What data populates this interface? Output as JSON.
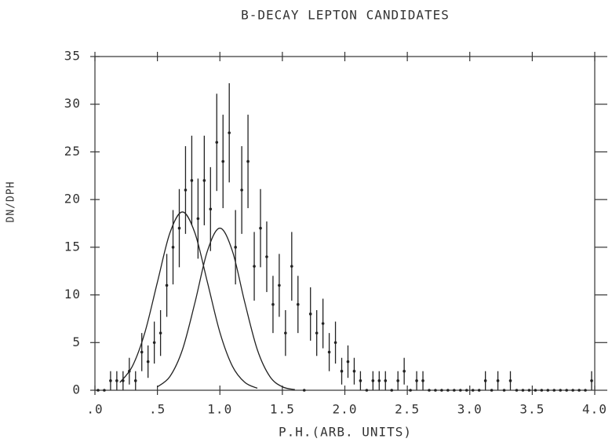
{
  "chart_data": {
    "type": "scatter",
    "title": "B-DECAY LEPTON CANDIDATES",
    "x_label": "P.H.(ARB. UNITS)",
    "y_label": "DN/DPH",
    "xlim": [
      0,
      4
    ],
    "ylim": [
      0,
      35
    ],
    "xticks": [
      {
        "value": 0,
        "label": ".0"
      },
      {
        "value": 0.5,
        "label": ".5"
      },
      {
        "value": 1,
        "label": "1.0"
      },
      {
        "value": 1.5,
        "label": "1.5"
      },
      {
        "value": 2,
        "label": "2.0"
      },
      {
        "value": 2.5,
        "label": "2.5"
      },
      {
        "value": 3,
        "label": "3.0"
      },
      {
        "value": 3.5,
        "label": "3.5"
      },
      {
        "value": 4,
        "label": "4.0"
      }
    ],
    "yticks": [
      0,
      5,
      10,
      15,
      20,
      25,
      30,
      35
    ],
    "color": "#222",
    "series": [
      {
        "type": "errorbar",
        "x": [
          0.025,
          0.075,
          0.125,
          0.175,
          0.225,
          0.275,
          0.325,
          0.375,
          0.425,
          0.475,
          0.525,
          0.575,
          0.625,
          0.675,
          0.725,
          0.775,
          0.825,
          0.875,
          0.925,
          0.975,
          1.025,
          1.075,
          1.125,
          1.175,
          1.225,
          1.275,
          1.325,
          1.375,
          1.425,
          1.475,
          1.525,
          1.575,
          1.625,
          1.675,
          1.725,
          1.775,
          1.825,
          1.875,
          1.925,
          1.975,
          2.025,
          2.075,
          2.125,
          2.175,
          2.225,
          2.275,
          2.325,
          2.375,
          2.425,
          2.475,
          2.525,
          2.575,
          2.625,
          2.675,
          2.725,
          2.775,
          2.825,
          2.875,
          2.925,
          2.975,
          3.025,
          3.075,
          3.125,
          3.175,
          3.225,
          3.275,
          3.325,
          3.375,
          3.425,
          3.475,
          3.525,
          3.575,
          3.625,
          3.675,
          3.725,
          3.775,
          3.825,
          3.875,
          3.925,
          3.975
        ],
        "values": [
          0,
          0,
          1,
          1,
          1,
          2,
          1,
          4,
          3,
          5,
          6,
          11,
          15,
          17,
          21,
          22,
          18,
          22,
          19,
          26,
          24,
          27,
          15,
          21,
          24,
          13,
          17,
          14,
          9,
          11,
          6,
          13,
          9,
          0,
          8,
          6,
          7,
          4,
          5,
          2,
          3,
          2,
          1,
          0,
          1,
          1,
          1,
          0,
          1,
          2,
          0,
          1,
          1,
          0,
          0,
          0,
          0,
          0,
          0,
          0,
          0,
          0,
          1,
          0,
          1,
          0,
          1,
          0,
          0,
          0,
          0,
          0,
          0,
          0,
          0,
          0,
          0,
          0,
          0,
          1
        ],
        "errors": [
          0,
          0,
          1,
          1,
          1,
          1.4,
          1,
          2,
          1.7,
          2.2,
          2.4,
          3.3,
          3.9,
          4.1,
          4.6,
          4.7,
          4.2,
          4.7,
          4.4,
          5.1,
          4.9,
          5.2,
          3.9,
          4.6,
          4.9,
          3.6,
          4.1,
          3.7,
          3,
          3.3,
          2.4,
          3.6,
          3,
          0,
          2.8,
          2.4,
          2.6,
          2,
          2.2,
          1.4,
          1.7,
          1.4,
          1,
          0,
          1,
          1,
          1,
          0,
          1,
          1.4,
          0,
          1,
          1,
          0,
          0,
          0,
          0,
          0,
          0,
          0,
          0,
          0,
          1,
          0,
          1,
          0,
          1,
          0,
          0,
          0,
          0,
          0,
          0,
          0,
          0,
          0,
          0,
          0,
          0,
          1
        ]
      },
      {
        "type": "line",
        "x": [
          0.2,
          0.3,
          0.4,
          0.5,
          0.6,
          0.7,
          0.8,
          0.9,
          1.0,
          1.1,
          1.2,
          1.3
        ],
        "values": [
          0.82,
          2.53,
          6.07,
          11.34,
          16.5,
          18.7,
          16.5,
          11.34,
          6.07,
          2.53,
          0.82,
          0.21
        ]
      },
      {
        "type": "line",
        "x": [
          0.5,
          0.6,
          0.7,
          0.8,
          0.9,
          1.0,
          1.1,
          1.2,
          1.3,
          1.4,
          1.5,
          1.6
        ],
        "values": [
          0.36,
          1.44,
          4.24,
          9.17,
          14.6,
          17,
          14.6,
          9.17,
          4.24,
          1.44,
          0.36,
          0.07
        ]
      }
    ]
  }
}
